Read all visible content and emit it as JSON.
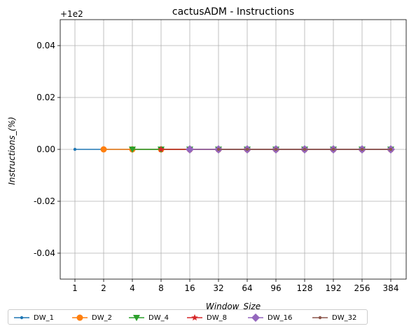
{
  "chart_data": {
    "type": "line",
    "title": "cactusADM - Instructions",
    "xlabel": "Window_Size",
    "ylabel": "Instructions_(%)",
    "offset_label": "+1e2",
    "categories": [
      "1",
      "2",
      "4",
      "8",
      "16",
      "32",
      "64",
      "96",
      "128",
      "192",
      "256",
      "384"
    ],
    "ylim": [
      -0.05,
      0.05
    ],
    "yticks": [
      "-0.04",
      "-0.02",
      "0.00",
      "0.02",
      "0.04"
    ],
    "grid": true,
    "legend_position": "bottom",
    "series": [
      {
        "name": "DW_1",
        "color": "#1f77b4",
        "marker": "point",
        "values": [
          0,
          0,
          0,
          0,
          0,
          0,
          0,
          0,
          0,
          0,
          0,
          0
        ]
      },
      {
        "name": "DW_2",
        "color": "#ff7f0e",
        "marker": "circle",
        "values": [
          null,
          0,
          0,
          0,
          0,
          0,
          0,
          0,
          0,
          0,
          0,
          0
        ]
      },
      {
        "name": "DW_4",
        "color": "#2ca02c",
        "marker": "triangle-down",
        "values": [
          null,
          null,
          0,
          0,
          0,
          0,
          0,
          0,
          0,
          0,
          0,
          0
        ]
      },
      {
        "name": "DW_8",
        "color": "#d62728",
        "marker": "star",
        "values": [
          null,
          null,
          null,
          0,
          0,
          0,
          0,
          0,
          0,
          0,
          0,
          0
        ]
      },
      {
        "name": "DW_16",
        "color": "#9467bd",
        "marker": "diamond",
        "values": [
          null,
          null,
          null,
          null,
          0,
          0,
          0,
          0,
          0,
          0,
          0,
          0
        ]
      },
      {
        "name": "DW_32",
        "color": "#8c564b",
        "marker": "point",
        "values": [
          null,
          null,
          null,
          null,
          null,
          0,
          0,
          0,
          0,
          0,
          0,
          0
        ]
      }
    ]
  }
}
